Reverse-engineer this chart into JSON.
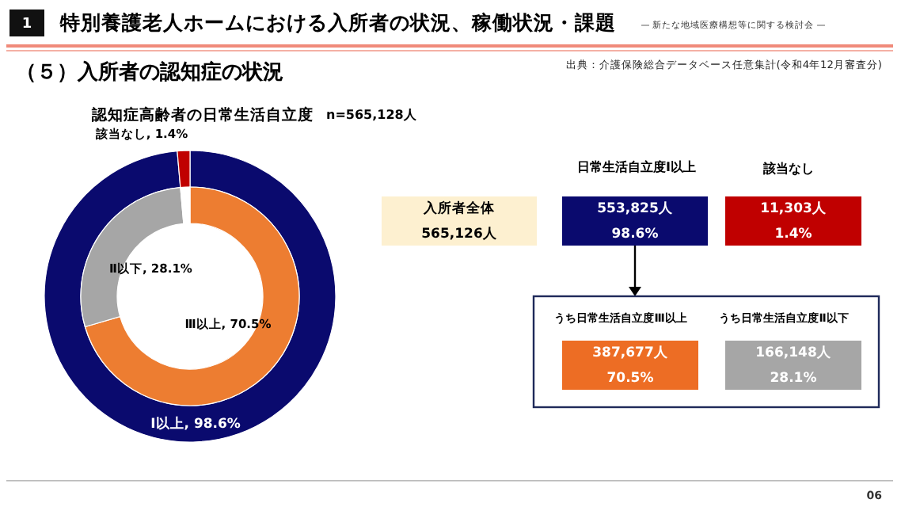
{
  "chart_data": [
    {
      "type": "other",
      "title": "特別養護老人ホームにおける入所者の状況、稼働状況・課題",
      "subtitle": "（５）入所者の認知症の状況",
      "annotations": [
        "1",
        "— 新たな地域医療構想等に関する検討会 —",
        "出典：介護保険総合データベース任意集計(令和4年12月審査分)",
        "06"
      ]
    },
    {
      "type": "donut",
      "title": "認知症高齢者の日常生活自立度",
      "subtitle": "n=565,128人",
      "categories": [
        "Ⅰ以上",
        "該当なし"
      ],
      "values": [
        98.6,
        1.4
      ],
      "value_labels": [
        "98.6%",
        "1.4%"
      ],
      "colors": [
        "#0a0a6e",
        "#c00000"
      ],
      "legend": false
    },
    {
      "type": "donut",
      "categories": [
        "Ⅲ以上",
        "Ⅱ以下",
        null
      ],
      "values": [
        70.5,
        28.1,
        1.4
      ],
      "value_labels": [
        "70.5%",
        "28.1%",
        null
      ],
      "colors": [
        "#ed7d31",
        "#a6a6a6",
        "#ffffff"
      ],
      "legend": false
    },
    {
      "type": "other",
      "annotations": [
        "日常生活自立度Ⅰ以上",
        "該当なし",
        "入所者全体",
        "565,126人",
        "553,825人",
        "98.6%",
        "11,303人",
        "1.4%",
        "うち日常生活自立度Ⅲ以上",
        "うち日常生活自立度Ⅱ以下",
        "387,677人",
        "70.5%",
        "166,148人",
        "28.1%"
      ]
    }
  ]
}
